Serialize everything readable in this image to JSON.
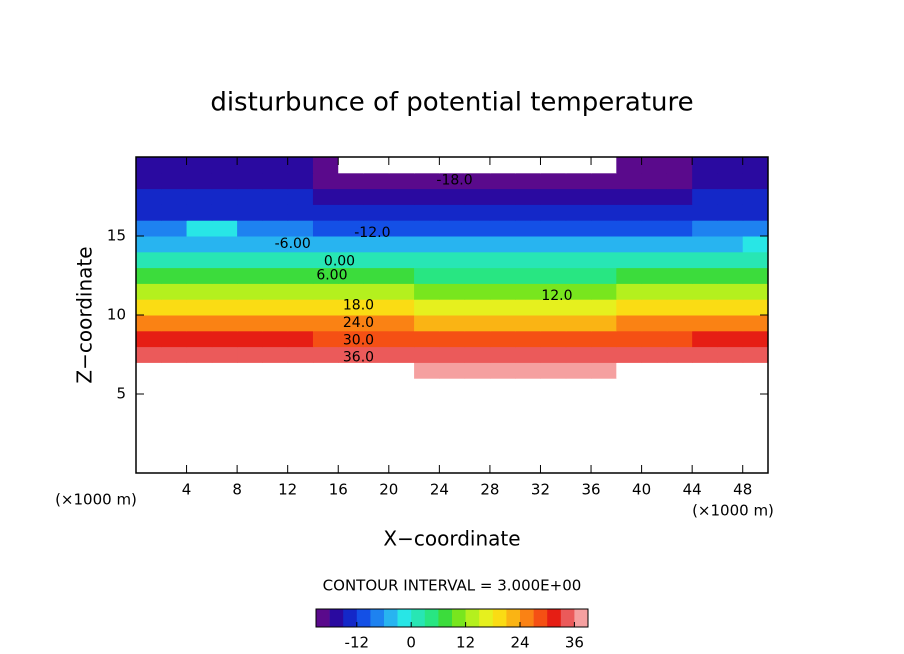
{
  "chart_data": {
    "type": "contour",
    "title": "disturbunce of potential temperature",
    "x_label": "X−coordinate",
    "y_label": "Z−coordinate",
    "x_unit_left": "(×1000 m)",
    "x_unit_right": "(×1000 m)",
    "xlim": [
      0,
      50
    ],
    "ylim": [
      0,
      20
    ],
    "xticks": [
      4,
      8,
      12,
      16,
      20,
      24,
      28,
      32,
      36,
      40,
      44,
      48
    ],
    "yticks": [
      5,
      10,
      15
    ],
    "x": [
      1,
      3,
      5,
      7,
      9,
      11,
      13,
      15,
      17,
      19,
      21,
      23,
      25,
      27,
      29,
      31,
      33,
      35,
      37,
      39,
      41,
      43,
      45,
      47,
      49
    ],
    "y": [
      6.5,
      7.5,
      8.5,
      9.5,
      10.5,
      11.5,
      12.5,
      13.5,
      14.5,
      15.5,
      16.5,
      17.5,
      18.5,
      19.5
    ],
    "values": [
      [
        41,
        41,
        41,
        41,
        41,
        41,
        41,
        40,
        40,
        40,
        40,
        38,
        38,
        38,
        38,
        38,
        38,
        38,
        38,
        40,
        40,
        40,
        41,
        41,
        41
      ],
      [
        35,
        35,
        35,
        35,
        35,
        35,
        35,
        34,
        34,
        34,
        34,
        33,
        33,
        33,
        33,
        33,
        33,
        33,
        33,
        34,
        34,
        34,
        35,
        35,
        35
      ],
      [
        30,
        30,
        30,
        30,
        30,
        30,
        30,
        29,
        29,
        29,
        29,
        28,
        28,
        28,
        28,
        28,
        28,
        28,
        28,
        29,
        29,
        29,
        30,
        30,
        30
      ],
      [
        25,
        25,
        25,
        25,
        25,
        25,
        25,
        24,
        24,
        24,
        24,
        23,
        23,
        23,
        23,
        23,
        23,
        23,
        23,
        24,
        24,
        24,
        25,
        25,
        25
      ],
      [
        19,
        19,
        19,
        19,
        19,
        19,
        19,
        18,
        18,
        18,
        18,
        17,
        17,
        17,
        17,
        17,
        17,
        17,
        17,
        18,
        18,
        18,
        19,
        19,
        19
      ],
      [
        13,
        13,
        13,
        13,
        13,
        13,
        13,
        12,
        12,
        12,
        12,
        11,
        11,
        11,
        11,
        11,
        11,
        11,
        11,
        12,
        12,
        12,
        13,
        13,
        13
      ],
      [
        7,
        7,
        7,
        7,
        7,
        7,
        7,
        6,
        6,
        6,
        6,
        5,
        5,
        5,
        5,
        5,
        5,
        5,
        5,
        6,
        6,
        6,
        7,
        7,
        7
      ],
      [
        2,
        2,
        2,
        2,
        2,
        2,
        2,
        1,
        1,
        1,
        1,
        0,
        0,
        0,
        0,
        0,
        0,
        0,
        0,
        1,
        1,
        1,
        2,
        2,
        2
      ],
      [
        -4,
        -4,
        -4,
        -4,
        -4,
        -4,
        -4,
        -5,
        -5,
        -5,
        -5,
        -6,
        -6,
        -6,
        -6,
        -6,
        -6,
        -6,
        -6,
        -5,
        -5,
        -5,
        -4,
        -4,
        -2
      ],
      [
        -9,
        -9,
        -3,
        -3,
        -9,
        -9,
        -9,
        -10,
        -10,
        -10,
        -10,
        -11,
        -11,
        -11,
        -11,
        -11,
        -11,
        -11,
        -11,
        -10,
        -10,
        -10,
        -9,
        -9,
        -9
      ],
      [
        -13,
        -13,
        -13,
        -13,
        -13,
        -13,
        -13,
        -14,
        -14,
        -14,
        -14,
        -15,
        -15,
        -15,
        -15,
        -15,
        -15,
        -15,
        -15,
        -14,
        -14,
        -14,
        -13,
        -13,
        -13
      ],
      [
        -15,
        -15,
        -15,
        -15,
        -15,
        -15,
        -15,
        -17,
        -17,
        -17,
        -17,
        -18,
        -18,
        -18,
        -18,
        -18,
        -18,
        -18,
        -18,
        -17,
        -17,
        -17,
        -15,
        -15,
        -15
      ],
      [
        -17,
        -17,
        -17,
        -17,
        -17,
        -17,
        -17,
        -19,
        -19,
        -19,
        -19,
        -20,
        -20,
        -20,
        -20,
        -20,
        -20,
        -20,
        -20,
        -19,
        -19,
        -19,
        -17,
        -17,
        -17
      ],
      [
        -18,
        -18,
        -18,
        -18,
        -18,
        -18,
        -18,
        -20,
        -23,
        -23,
        -23,
        -22,
        -22,
        -22,
        -22,
        -22,
        -22,
        -22,
        -22,
        -20,
        -20,
        -20,
        -18,
        -18,
        -18
      ]
    ],
    "clim": [
      -21,
      39
    ],
    "contour_interval": 3,
    "colors": [
      "#5a0a8c",
      "#2a0aa0",
      "#1428c8",
      "#1450e6",
      "#1e82f0",
      "#28b4f0",
      "#28e6e6",
      "#28e6b4",
      "#28e682",
      "#3cdc3c",
      "#78e61e",
      "#b4f01e",
      "#e6f01e",
      "#fadc14",
      "#fab414",
      "#fa8214",
      "#f55014",
      "#e61e14",
      "#eb5a5a",
      "#f5a0a0"
    ],
    "contour_labels": [
      {
        "label": "-18.0",
        "x": 25.2,
        "y": 18.5
      },
      {
        "label": "-12.0",
        "x": 18.7,
        "y": 15.2
      },
      {
        "label": "-6.00",
        "x": 12.4,
        "y": 14.5
      },
      {
        "label": "0.00",
        "x": 16.1,
        "y": 13.4
      },
      {
        "label": "6.00",
        "x": 15.5,
        "y": 12.5
      },
      {
        "label": "12.0",
        "x": 33.3,
        "y": 11.2
      },
      {
        "label": "18.0",
        "x": 17.6,
        "y": 10.6
      },
      {
        "label": "24.0",
        "x": 17.6,
        "y": 9.5
      },
      {
        "label": "30.0",
        "x": 17.6,
        "y": 8.4
      },
      {
        "label": "36.0",
        "x": 17.6,
        "y": 7.3
      }
    ],
    "contour_interval_label": "CONTOUR INTERVAL = 3.000E+00",
    "colorbar_ticks": [
      -12,
      0,
      12,
      24,
      36
    ]
  }
}
